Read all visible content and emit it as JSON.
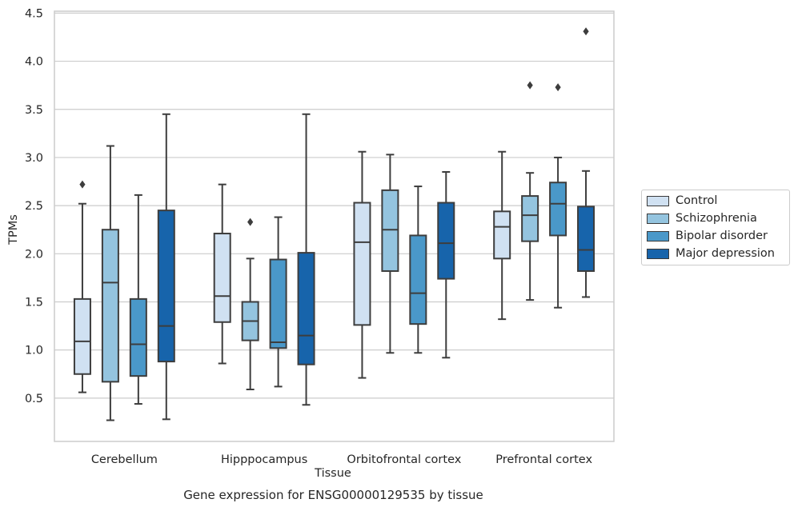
{
  "caption": "Gene expression for ENSG00000129535 by tissue",
  "chart_data": {
    "type": "box",
    "title": "",
    "xlabel": "Tissue",
    "ylabel": "TPMs",
    "ylim": [
      0.05,
      4.52
    ],
    "yticks": [
      "0.5",
      "1.0",
      "1.5",
      "2.0",
      "2.5",
      "3.0",
      "3.5",
      "4.0",
      "4.5"
    ],
    "grid": "horizontal",
    "legend_position": "right",
    "categories": [
      "Cerebellum",
      "Hipppocampus",
      "Orbitofrontal cortex",
      "Prefrontal cortex"
    ],
    "series": [
      {
        "name": "Control",
        "color": "#d0e1f2",
        "boxes": [
          {
            "whisker_low": 0.56,
            "q1": 0.75,
            "median": 1.09,
            "q3": 1.53,
            "whisker_high": 2.52,
            "outliers": [
              2.72
            ]
          },
          {
            "whisker_low": 0.86,
            "q1": 1.29,
            "median": 1.56,
            "q3": 2.21,
            "whisker_high": 2.72,
            "outliers": []
          },
          {
            "whisker_low": 0.71,
            "q1": 1.26,
            "median": 2.12,
            "q3": 2.53,
            "whisker_high": 3.06,
            "outliers": []
          },
          {
            "whisker_low": 1.32,
            "q1": 1.95,
            "median": 2.28,
            "q3": 2.44,
            "whisker_high": 3.06,
            "outliers": []
          }
        ]
      },
      {
        "name": "Schizophrenia",
        "color": "#94c4df",
        "boxes": [
          {
            "whisker_low": 0.27,
            "q1": 0.67,
            "median": 1.7,
            "q3": 2.25,
            "whisker_high": 3.12,
            "outliers": []
          },
          {
            "whisker_low": 0.59,
            "q1": 1.1,
            "median": 1.3,
            "q3": 1.5,
            "whisker_high": 1.95,
            "outliers": [
              2.33
            ]
          },
          {
            "whisker_low": 0.97,
            "q1": 1.82,
            "median": 2.25,
            "q3": 2.66,
            "whisker_high": 3.03,
            "outliers": []
          },
          {
            "whisker_low": 1.52,
            "q1": 2.13,
            "median": 2.4,
            "q3": 2.6,
            "whisker_high": 2.84,
            "outliers": [
              3.75
            ]
          }
        ]
      },
      {
        "name": "Bipolar disorder",
        "color": "#4a98c9",
        "boxes": [
          {
            "whisker_low": 0.44,
            "q1": 0.73,
            "median": 1.06,
            "q3": 1.53,
            "whisker_high": 2.61,
            "outliers": []
          },
          {
            "whisker_low": 0.62,
            "q1": 1.02,
            "median": 1.08,
            "q3": 1.94,
            "whisker_high": 2.38,
            "outliers": []
          },
          {
            "whisker_low": 0.97,
            "q1": 1.27,
            "median": 1.59,
            "q3": 2.19,
            "whisker_high": 2.7,
            "outliers": []
          },
          {
            "whisker_low": 1.44,
            "q1": 2.19,
            "median": 2.52,
            "q3": 2.74,
            "whisker_high": 3.0,
            "outliers": [
              3.73
            ]
          }
        ]
      },
      {
        "name": "Major depression",
        "color": "#1764ab",
        "boxes": [
          {
            "whisker_low": 0.28,
            "q1": 0.88,
            "median": 1.25,
            "q3": 2.45,
            "whisker_high": 3.45,
            "outliers": []
          },
          {
            "whisker_low": 0.43,
            "q1": 0.85,
            "median": 1.15,
            "q3": 2.01,
            "whisker_high": 3.45,
            "outliers": []
          },
          {
            "whisker_low": 0.92,
            "q1": 1.74,
            "median": 2.11,
            "q3": 2.53,
            "whisker_high": 2.85,
            "outliers": []
          },
          {
            "whisker_low": 1.55,
            "q1": 1.82,
            "median": 2.04,
            "q3": 2.49,
            "whisker_high": 2.86,
            "outliers": [
              4.31
            ]
          }
        ]
      }
    ]
  }
}
